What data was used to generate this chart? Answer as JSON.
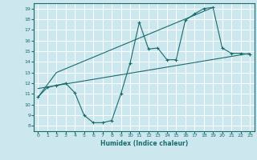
{
  "xlabel": "Humidex (Indice chaleur)",
  "xlim": [
    -0.5,
    23.5
  ],
  "ylim": [
    7.5,
    19.5
  ],
  "yticks": [
    8,
    9,
    10,
    11,
    12,
    13,
    14,
    15,
    16,
    17,
    18,
    19
  ],
  "xticks": [
    0,
    1,
    2,
    3,
    4,
    5,
    6,
    7,
    8,
    9,
    10,
    11,
    12,
    13,
    14,
    15,
    16,
    17,
    18,
    19,
    20,
    21,
    22,
    23
  ],
  "bg_color": "#cce8ee",
  "grid_color": "#ffffff",
  "line_color": "#1a6b6b",
  "line1_x": [
    0,
    1,
    2,
    3,
    4,
    5,
    6,
    7,
    8,
    9,
    10,
    11,
    12,
    13,
    14,
    15,
    16,
    17,
    18,
    19,
    20,
    21,
    22,
    23
  ],
  "line1_y": [
    10.7,
    11.6,
    11.8,
    12.0,
    11.1,
    9.0,
    8.3,
    8.3,
    8.5,
    11.0,
    13.9,
    17.7,
    15.2,
    15.3,
    14.2,
    14.2,
    17.9,
    18.5,
    19.0,
    19.1,
    15.3,
    14.8,
    14.8,
    14.7
  ],
  "line2_x": [
    0,
    2,
    19
  ],
  "line2_y": [
    10.7,
    13.0,
    19.1
  ],
  "line3_x": [
    0,
    23
  ],
  "line3_y": [
    11.5,
    14.8
  ]
}
